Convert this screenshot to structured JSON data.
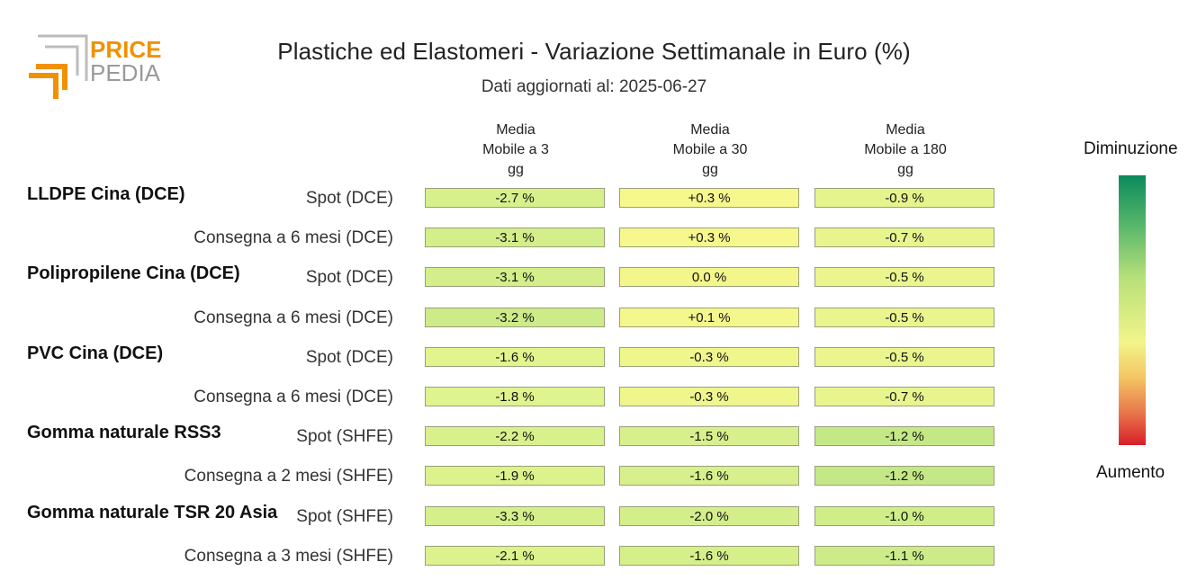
{
  "logo": {
    "line1": "PRICE",
    "line2": "PEDIA",
    "accent_color": "#f29100",
    "grey_color": "#9a9a9a"
  },
  "chart_data": {
    "type": "table",
    "title": "Plastiche ed Elastomeri - Variazione Settimanale in Euro (%)",
    "subtitle": "Dati aggiornati al: 2025-06-27",
    "columns": [
      [
        "Media",
        "Mobile a 3",
        "gg"
      ],
      [
        "Media",
        "Mobile a 30",
        "gg"
      ],
      [
        "Media",
        "Mobile a 180",
        "gg"
      ]
    ],
    "groups": [
      {
        "name": "LLDPE Cina (DCE)",
        "rows": [
          {
            "label": "Spot (DCE)",
            "values": [
              -2.7,
              0.3,
              -0.9
            ],
            "display": [
              "-2.7 %",
              "+0.3 %",
              "-0.9 %"
            ]
          },
          {
            "label": "Consegna a 6 mesi (DCE)",
            "values": [
              -3.1,
              0.3,
              -0.7
            ],
            "display": [
              "-3.1 %",
              "+0.3 %",
              "-0.7 %"
            ]
          }
        ]
      },
      {
        "name": "Polipropilene Cina (DCE)",
        "rows": [
          {
            "label": "Spot (DCE)",
            "values": [
              -3.1,
              0.0,
              -0.5
            ],
            "display": [
              "-3.1 %",
              "0.0 %",
              "-0.5 %"
            ]
          },
          {
            "label": "Consegna a 6 mesi (DCE)",
            "values": [
              -3.2,
              0.1,
              -0.5
            ],
            "display": [
              "-3.2 %",
              "+0.1 %",
              "-0.5 %"
            ]
          }
        ]
      },
      {
        "name": "PVC Cina (DCE)",
        "rows": [
          {
            "label": "Spot (DCE)",
            "values": [
              -1.6,
              -0.3,
              -0.5
            ],
            "display": [
              "-1.6 %",
              "-0.3 %",
              "-0.5 %"
            ]
          },
          {
            "label": "Consegna a 6 mesi (DCE)",
            "values": [
              -1.8,
              -0.3,
              -0.7
            ],
            "display": [
              "-1.8 %",
              "-0.3 %",
              "-0.7 %"
            ]
          }
        ]
      },
      {
        "name": "Gomma naturale RSS3",
        "rows": [
          {
            "label": "Spot (SHFE)",
            "values": [
              -2.2,
              -1.5,
              -1.2
            ],
            "display": [
              "-2.2 %",
              "-1.5 %",
              "-1.2 %"
            ]
          },
          {
            "label": "Consegna a 2 mesi (SHFE)",
            "values": [
              -1.9,
              -1.6,
              -1.2
            ],
            "display": [
              "-1.9 %",
              "-1.6 %",
              "-1.2 %"
            ]
          }
        ]
      },
      {
        "name": "Gomma naturale TSR 20 Asia",
        "rows": [
          {
            "label": "Spot (SHFE)",
            "values": [
              -3.3,
              -2.0,
              -1.0
            ],
            "display": [
              "-3.3 %",
              "-2.0 %",
              "-1.0 %"
            ]
          },
          {
            "label": "Consegna a 3 mesi (SHFE)",
            "values": [
              -2.1,
              -1.6,
              -1.1
            ],
            "display": [
              "-2.1 %",
              "-1.6 %",
              "-1.1 %"
            ]
          }
        ]
      }
    ],
    "cell_colors": [
      [
        "#d7f08c",
        "#f6f78c",
        "#e6f48e"
      ],
      [
        "#d3ee8b",
        "#f6f78c",
        "#e8f58e"
      ],
      [
        "#d3ee8b",
        "#f3f68b",
        "#eaf58e"
      ],
      [
        "#cdeb89",
        "#f4f78b",
        "#eaf58e"
      ],
      [
        "#e2f48e",
        "#eff68c",
        "#eaf58e"
      ],
      [
        "#dff38e",
        "#eff68c",
        "#e8f58e"
      ],
      [
        "#d9f18c",
        "#d7ef8c",
        "#c4e886"
      ],
      [
        "#dcf28d",
        "#d7ef8c",
        "#c4e886"
      ],
      [
        "#d5ef8b",
        "#d3ee8b",
        "#cfee8a"
      ],
      [
        "#dbf28d",
        "#d5ef8b",
        "#ccec89"
      ]
    ],
    "legend": {
      "top_label": "Diminuzione",
      "bottom_label": "Aumento",
      "colorscale": [
        "#0b8a5c",
        "#b7e07a",
        "#f2f58a",
        "#d81e2a"
      ]
    }
  }
}
